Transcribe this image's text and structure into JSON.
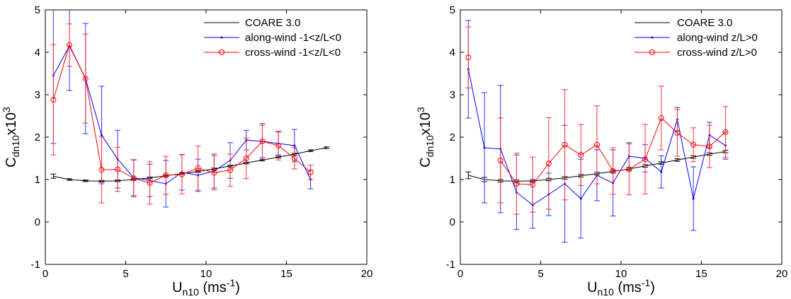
{
  "colors": {
    "coare": "#000000",
    "along": "#0000ff",
    "cross": "#ff0000",
    "err_coare": "#000000",
    "err_along": "#3333ff",
    "err_cross": "#ff3333"
  },
  "chart_data": [
    {
      "type": "line",
      "xlabel": {
        "main": "U",
        "sub": "n10",
        "unit": " (ms",
        "sup": "-1",
        "end": ")"
      },
      "ylabel": {
        "main": "C",
        "sub": "dn10",
        "mid": "x10",
        "sup": "3"
      },
      "xlim": [
        0,
        20
      ],
      "ylim": [
        -1,
        5
      ],
      "xticks": [
        "0",
        "5",
        "10",
        "15",
        "20"
      ],
      "yticks": [
        "-1",
        "0",
        "1",
        "2",
        "3",
        "4",
        "5"
      ],
      "grid": false,
      "legend_position": "top-right",
      "series": [
        {
          "name": "COARE 3.0",
          "color_key": "coare",
          "marker": "none",
          "x": [
            0.5,
            1.5,
            2.5,
            3.5,
            4.5,
            5.5,
            6.5,
            7.5,
            8.5,
            9.5,
            10.5,
            11.5,
            12.5,
            13.5,
            14.5,
            15.5,
            16.5,
            17.5
          ],
          "y": [
            1.08,
            1.0,
            0.97,
            0.96,
            0.97,
            1.0,
            1.04,
            1.09,
            1.14,
            1.19,
            1.25,
            1.32,
            1.39,
            1.46,
            1.53,
            1.6,
            1.68,
            1.75
          ],
          "err": [
            0.05,
            0.02,
            0.02,
            0.02,
            0.02,
            0.02,
            0.02,
            0.02,
            0.02,
            0.02,
            0.02,
            0.02,
            0.02,
            0.02,
            0.02,
            0.02,
            0.02,
            0.02
          ]
        },
        {
          "name": "along-wind -1<z/L<0",
          "color_key": "along",
          "marker": "dot",
          "x": [
            0.5,
            1.5,
            2.5,
            3.5,
            4.5,
            5.5,
            6.5,
            7.5,
            8.5,
            9.5,
            10.5,
            11.5,
            12.5,
            13.5,
            14.5,
            15.5,
            16.5
          ],
          "y": [
            3.45,
            4.15,
            3.38,
            2.05,
            1.48,
            1.04,
            0.98,
            0.9,
            1.17,
            1.1,
            1.2,
            1.45,
            1.93,
            1.9,
            1.85,
            1.8,
            1.0
          ],
          "err": [
            1.6,
            1.05,
            1.3,
            1.15,
            0.68,
            0.42,
            0.38,
            0.55,
            0.42,
            0.38,
            0.4,
            0.42,
            0.23,
            0.42,
            0.27,
            0.38,
            0.22
          ]
        },
        {
          "name": "cross-wind -1<z/L<0",
          "color_key": "cross",
          "marker": "circle",
          "x": [
            0.5,
            1.5,
            2.5,
            3.5,
            4.5,
            5.5,
            6.5,
            7.5,
            8.5,
            9.5,
            10.5,
            11.5,
            12.5,
            13.5,
            14.5,
            15.5,
            16.5
          ],
          "y": [
            2.88,
            4.17,
            3.38,
            1.23,
            1.24,
            1.03,
            0.92,
            1.1,
            1.12,
            1.27,
            1.16,
            1.22,
            1.5,
            1.9,
            1.8,
            1.5,
            1.17
          ],
          "err": [
            1.3,
            0.5,
            1.05,
            0.78,
            0.52,
            0.44,
            0.5,
            0.45,
            0.46,
            0.52,
            0.4,
            0.38,
            0.48,
            0.38,
            0.34,
            0.25,
            0.17
          ]
        }
      ]
    },
    {
      "type": "line",
      "xlabel": {
        "main": "U",
        "sub": "n10",
        "unit": " (ms",
        "sup": "-1",
        "end": ")"
      },
      "ylabel": {
        "main": "C",
        "sub": "dn10",
        "mid": "x10",
        "sup": "3"
      },
      "xlim": [
        0,
        20
      ],
      "ylim": [
        -1,
        5
      ],
      "xticks": [
        "0",
        "5",
        "10",
        "15",
        "20"
      ],
      "yticks": [
        "-1",
        "0",
        "1",
        "2",
        "3",
        "4",
        "5"
      ],
      "grid": false,
      "legend_position": "top-right",
      "series": [
        {
          "name": "COARE 3.0",
          "color_key": "coare",
          "marker": "none",
          "x": [
            0.5,
            1.5,
            2.5,
            3.5,
            4.5,
            5.5,
            6.5,
            7.5,
            8.5,
            9.5,
            10.5,
            11.5,
            12.5,
            13.5,
            14.5,
            15.5,
            16.5
          ],
          "y": [
            1.1,
            1.0,
            0.97,
            0.96,
            0.97,
            1.0,
            1.04,
            1.09,
            1.14,
            1.19,
            1.25,
            1.32,
            1.39,
            1.46,
            1.53,
            1.6,
            1.66
          ],
          "err": [
            0.08,
            0.05,
            0.03,
            0.03,
            0.03,
            0.03,
            0.03,
            0.03,
            0.03,
            0.03,
            0.03,
            0.03,
            0.03,
            0.03,
            0.03,
            0.03,
            0.03
          ]
        },
        {
          "name": "along-wind z/L>0",
          "color_key": "along",
          "marker": "dot",
          "x": [
            0.5,
            1.5,
            2.5,
            3.5,
            4.5,
            5.5,
            6.5,
            7.5,
            8.5,
            9.5,
            10.5,
            11.5,
            12.5,
            13.5,
            14.5,
            15.5,
            16.5
          ],
          "y": [
            3.6,
            1.75,
            1.72,
            0.7,
            0.4,
            0.65,
            0.9,
            0.55,
            1.1,
            0.92,
            1.55,
            1.5,
            1.18,
            2.42,
            0.55,
            2.05,
            1.8
          ],
          "err": [
            1.15,
            1.3,
            1.5,
            0.88,
            0.55,
            0.5,
            1.38,
            0.93,
            0.6,
            0.78,
            0.32,
            0.32,
            0.38,
            0.28,
            0.75,
            0.3,
            0.32
          ]
        },
        {
          "name": "cross-wind z/L>0",
          "color_key": "cross",
          "marker": "circle",
          "x": [
            0.5,
            1.5,
            2.5,
            3.5,
            4.5,
            5.5,
            6.5,
            7.5,
            8.5,
            9.5,
            10.5,
            11.5,
            12.5,
            13.5,
            14.5,
            15.5,
            16.5
          ],
          "y": [
            3.88,
            null,
            1.45,
            0.9,
            0.88,
            1.38,
            1.82,
            1.58,
            1.82,
            1.2,
            1.24,
            1.48,
            2.45,
            2.1,
            1.82,
            1.78,
            2.12
          ],
          "err": [
            0.72,
            null,
            1.0,
            0.72,
            0.65,
            1.08,
            1.3,
            0.72,
            0.92,
            0.55,
            0.6,
            0.82,
            0.75,
            0.55,
            0.4,
            0.5,
            0.6
          ]
        }
      ]
    }
  ]
}
